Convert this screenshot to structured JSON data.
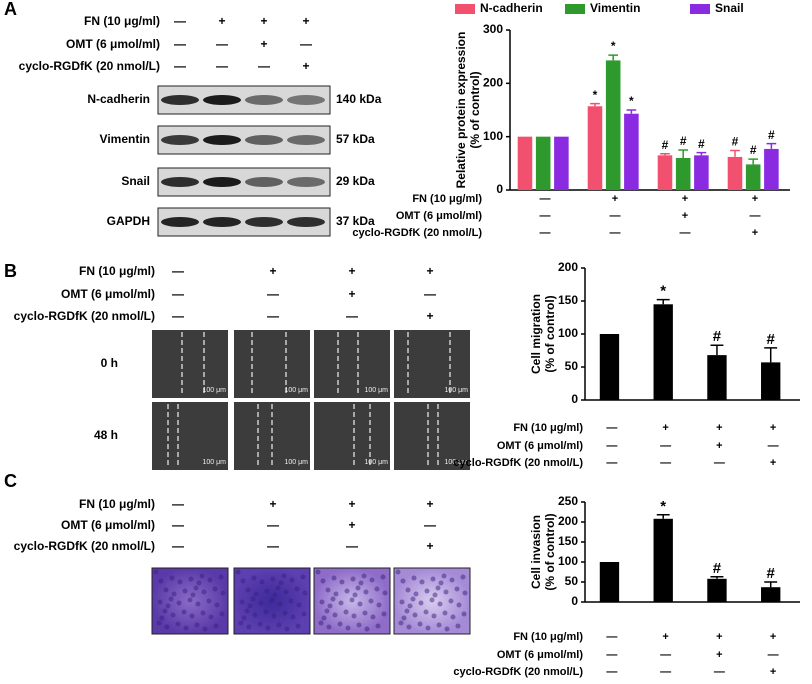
{
  "panels": [
    {
      "label": "A",
      "treatments": [
        {
          "name": "FN (10 μg/ml)",
          "signs": [
            "—",
            "+",
            "+",
            "+"
          ]
        },
        {
          "name": "OMT (6 μmol/ml)",
          "signs": [
            "—",
            "—",
            "+",
            "—"
          ]
        },
        {
          "name": "cyclo-RGDfK (20 nmol/L)",
          "signs": [
            "—",
            "—",
            "—",
            "+"
          ]
        }
      ],
      "blots": [
        {
          "protein": "N-cadherin",
          "size": "140 kDa"
        },
        {
          "protein": "Vimentin",
          "size": "57 kDa"
        },
        {
          "protein": "Snail",
          "size": "29 kDa"
        },
        {
          "protein": "GAPDH",
          "size": "37 kDa"
        }
      ]
    },
    {
      "label": "B",
      "treatments": [
        {
          "name": "FN (10 μg/ml)",
          "signs": [
            "—",
            "+",
            "+",
            "+"
          ]
        },
        {
          "name": "OMT (6 μmol/ml)",
          "signs": [
            "—",
            "—",
            "+",
            "—"
          ]
        },
        {
          "name": "cyclo-RGDfK (20 nmol/L)",
          "signs": [
            "—",
            "—",
            "—",
            "+"
          ]
        }
      ],
      "image_rows": [
        {
          "label": "0 h"
        },
        {
          "label": "48 h"
        }
      ],
      "scale_bar": "100 μm"
    },
    {
      "label": "C",
      "treatments": [
        {
          "name": "FN (10 μg/ml)",
          "signs": [
            "—",
            "+",
            "+",
            "+"
          ]
        },
        {
          "name": "OMT (6 μmol/ml)",
          "signs": [
            "—",
            "—",
            "+",
            "—"
          ]
        },
        {
          "name": "cyclo-RGDfK (20 nmol/L)",
          "signs": [
            "—",
            "—",
            "—",
            "+"
          ]
        }
      ]
    }
  ],
  "chart_data": [
    {
      "type": "bar",
      "ylabel": [
        "Relative protein expression",
        "(% of control)"
      ],
      "categories": [
        null,
        null,
        null,
        null
      ],
      "series": [
        {
          "name": "N-cadherin",
          "color": "#f2506f",
          "values": [
            100,
            157,
            65,
            62
          ],
          "errors": [
            0,
            5,
            3,
            12
          ],
          "significance": [
            null,
            "*",
            "#",
            "#"
          ]
        },
        {
          "name": "Vimentin",
          "color": "#2e9a2e",
          "values": [
            100,
            243,
            60,
            48
          ],
          "errors": [
            0,
            10,
            15,
            10
          ],
          "significance": [
            null,
            "*",
            "#",
            "#"
          ]
        },
        {
          "name": "Snail",
          "color": "#8a2be2",
          "values": [
            100,
            143,
            65,
            77
          ],
          "errors": [
            0,
            7,
            5,
            10
          ],
          "significance": [
            null,
            "*",
            "#",
            "#"
          ]
        }
      ],
      "ylim": [
        0,
        300
      ],
      "yticks": [
        0,
        100,
        200,
        300
      ],
      "legend": "top",
      "treatments": [
        {
          "name": "FN (10 μg/ml)",
          "signs": [
            "—",
            "+",
            "+",
            "+"
          ]
        },
        {
          "name": "OMT (6 μmol/ml)",
          "signs": [
            "—",
            "—",
            "+",
            "—"
          ]
        },
        {
          "name": "cyclo-RGDfK (20 nmol/L)",
          "signs": [
            "—",
            "—",
            "—",
            "+"
          ]
        }
      ]
    },
    {
      "type": "bar",
      "ylabel": [
        "Cell migration",
        "(% of control)"
      ],
      "categories": [
        null,
        null,
        null,
        null
      ],
      "values": [
        100,
        145,
        68,
        57
      ],
      "errors": [
        0,
        7,
        15,
        22
      ],
      "significance": [
        null,
        "*",
        "#",
        "#"
      ],
      "color": "#000000",
      "ylim": [
        0,
        200
      ],
      "yticks": [
        0,
        50,
        100,
        150,
        200
      ],
      "treatments": [
        {
          "name": "FN (10 μg/ml)",
          "signs": [
            "—",
            "+",
            "+",
            "+"
          ]
        },
        {
          "name": "OMT (6 μmol/ml)",
          "signs": [
            "—",
            "—",
            "+",
            "—"
          ]
        },
        {
          "name": "cyclo-RGDfK (20 nmol/L)",
          "signs": [
            "—",
            "—",
            "—",
            "+"
          ]
        }
      ]
    },
    {
      "type": "bar",
      "ylabel": [
        "Cell invasion",
        "(% of control)"
      ],
      "categories": [
        null,
        null,
        null,
        null
      ],
      "values": [
        100,
        208,
        58,
        37
      ],
      "errors": [
        0,
        10,
        5,
        13
      ],
      "significance": [
        null,
        "*",
        "#",
        "#"
      ],
      "color": "#000000",
      "ylim": [
        0,
        250
      ],
      "yticks": [
        0,
        50,
        100,
        150,
        200,
        250
      ],
      "treatments": [
        {
          "name": "FN (10 μg/ml)",
          "signs": [
            "—",
            "+",
            "+",
            "+"
          ]
        },
        {
          "name": "OMT (6 μmol/ml)",
          "signs": [
            "—",
            "—",
            "+",
            "—"
          ]
        },
        {
          "name": "cyclo-RGDfK (20 nmol/L)",
          "signs": [
            "—",
            "—",
            "—",
            "+"
          ]
        }
      ]
    }
  ]
}
